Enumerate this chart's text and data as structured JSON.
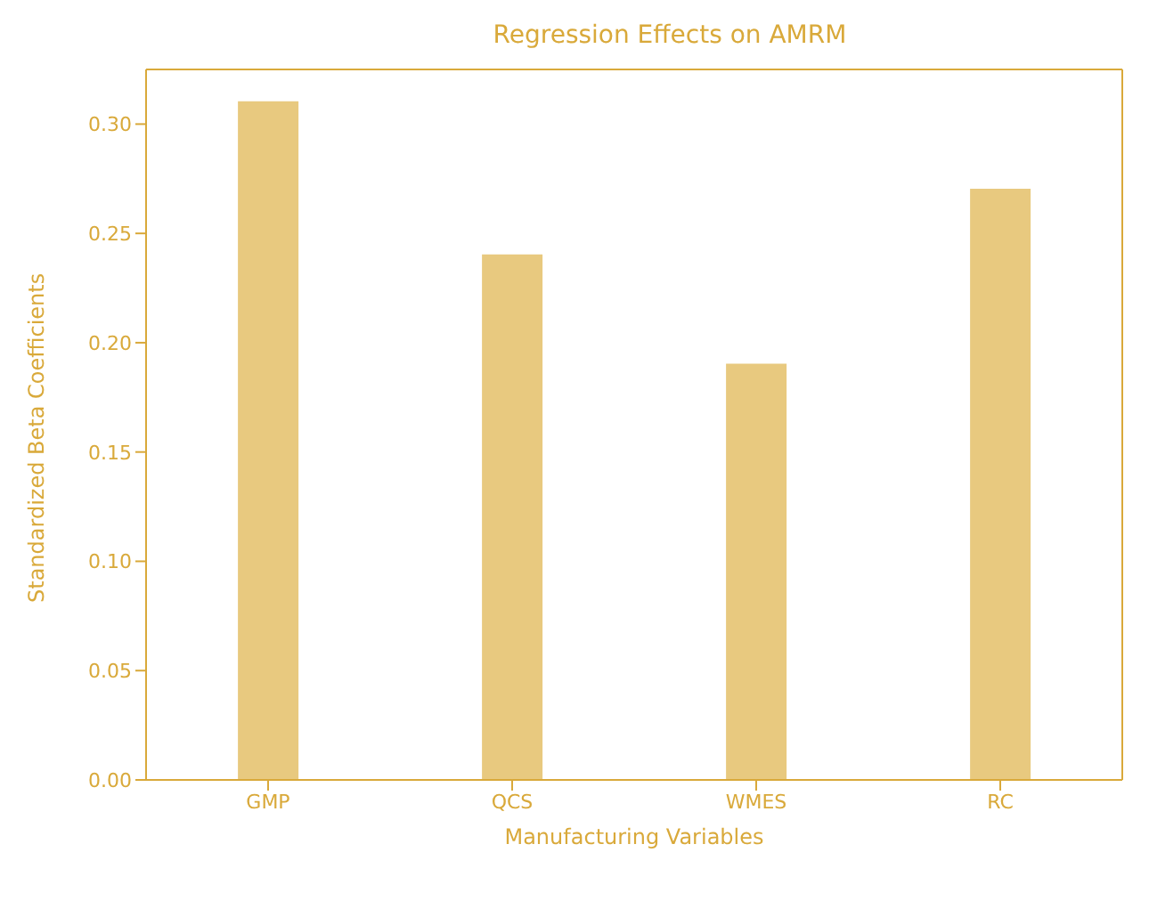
{
  "chart_data": {
    "type": "bar",
    "title": "Regression Effects on AMRM",
    "xlabel": "Manufacturing Variables",
    "ylabel": "Standardized Beta Coefficients",
    "categories": [
      "GMP",
      "QCS",
      "WMES",
      "RC"
    ],
    "values": [
      0.31,
      0.24,
      0.19,
      0.27
    ],
    "color": "#e8c97f",
    "ylim": [
      0,
      0.325
    ],
    "yticks": [
      {
        "value": 0,
        "label": "0.00"
      },
      {
        "value": 0.05,
        "label": "0.05"
      },
      {
        "value": 0.1,
        "label": "0.10"
      },
      {
        "value": 0.15,
        "label": "0.15"
      },
      {
        "value": 0.2,
        "label": "0.20"
      },
      {
        "value": 0.25,
        "label": "0.25"
      },
      {
        "value": 0.3,
        "label": "0.30"
      }
    ],
    "grid": false,
    "legend": false
  }
}
